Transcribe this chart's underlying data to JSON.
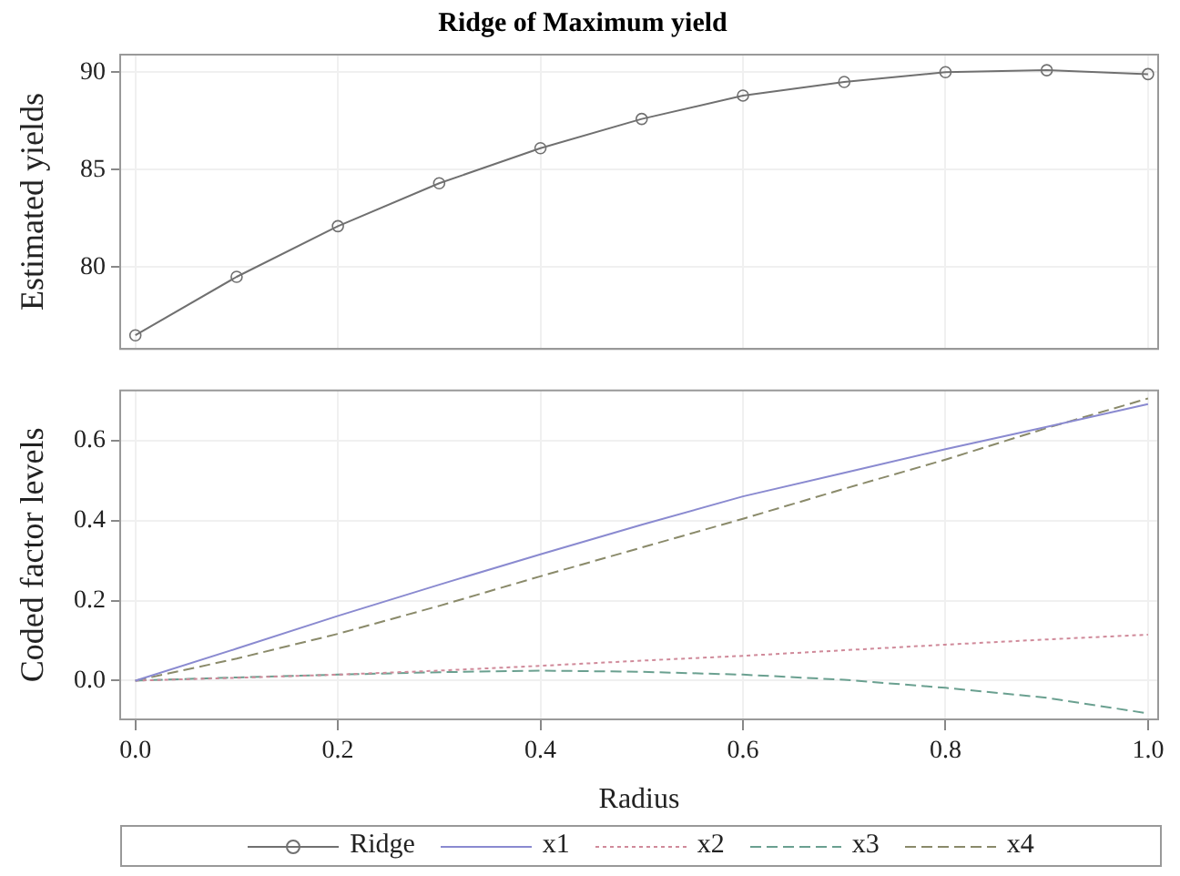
{
  "chart_data": [
    {
      "type": "line",
      "title": "Ridge of Maximum yield",
      "ylabel": "Estimated yields",
      "x": [
        0,
        0.1,
        0.2,
        0.3,
        0.4,
        0.5,
        0.6,
        0.7,
        0.8,
        0.9,
        1.0
      ],
      "xlim": [
        -0.015,
        1.01
      ],
      "xticks": [
        0,
        0.2,
        0.4,
        0.6,
        0.8,
        1.0
      ],
      "ylim": [
        75.8,
        90.9
      ],
      "yticks": [
        80,
        85,
        90
      ],
      "tick_labels": "y",
      "grid": true,
      "legend": "bottom",
      "series": [
        {
          "name": "Ridge",
          "color": "#707070",
          "marker": "circle",
          "line_style": "solid",
          "values": [
            76.5,
            79.5,
            82.1,
            84.3,
            86.1,
            87.6,
            88.8,
            89.5,
            90.0,
            90.1,
            89.9
          ]
        }
      ]
    },
    {
      "type": "line",
      "xlabel": "Radius",
      "ylabel": "Coded factor levels",
      "x": [
        0,
        0.1,
        0.2,
        0.3,
        0.4,
        0.5,
        0.6,
        0.7,
        0.8,
        0.9,
        1.0
      ],
      "xlim": [
        -0.015,
        1.01
      ],
      "xticks": [
        {
          "value": 0,
          "label": "0.0"
        },
        0.2,
        0.4,
        0.6,
        0.8,
        {
          "value": 1,
          "label": "1.0"
        }
      ],
      "ylim": [
        -0.097,
        0.726
      ],
      "yticks": [
        {
          "value": 0,
          "label": "0.0"
        },
        0.2,
        0.4,
        0.6
      ],
      "grid": true,
      "legend": "bottom",
      "series": [
        {
          "name": "x1",
          "color": "#8a8ad0",
          "marker": "none",
          "line_style": "solid",
          "values": [
            0,
            0.08,
            0.162,
            0.24,
            0.316,
            0.39,
            0.461,
            0.52,
            0.579,
            0.635,
            0.692
          ]
        },
        {
          "name": "x2",
          "color": "#d08a9a",
          "marker": "none",
          "line_style": "dotted",
          "values": [
            0,
            0.007,
            0.015,
            0.025,
            0.037,
            0.05,
            0.062,
            0.076,
            0.09,
            0.103,
            0.115
          ]
        },
        {
          "name": "x3",
          "color": "#6aa090",
          "marker": "none",
          "line_style": "dashed",
          "values": [
            0,
            0.008,
            0.015,
            0.021,
            0.025,
            0.022,
            0.015,
            0.002,
            -0.018,
            -0.043,
            -0.082
          ]
        },
        {
          "name": "x4",
          "color": "#8a8a6a",
          "marker": "none",
          "line_style": "dashed",
          "values": [
            0,
            0.055,
            0.117,
            0.187,
            0.261,
            0.333,
            0.405,
            0.48,
            0.553,
            0.632,
            0.706
          ]
        }
      ]
    }
  ]
}
